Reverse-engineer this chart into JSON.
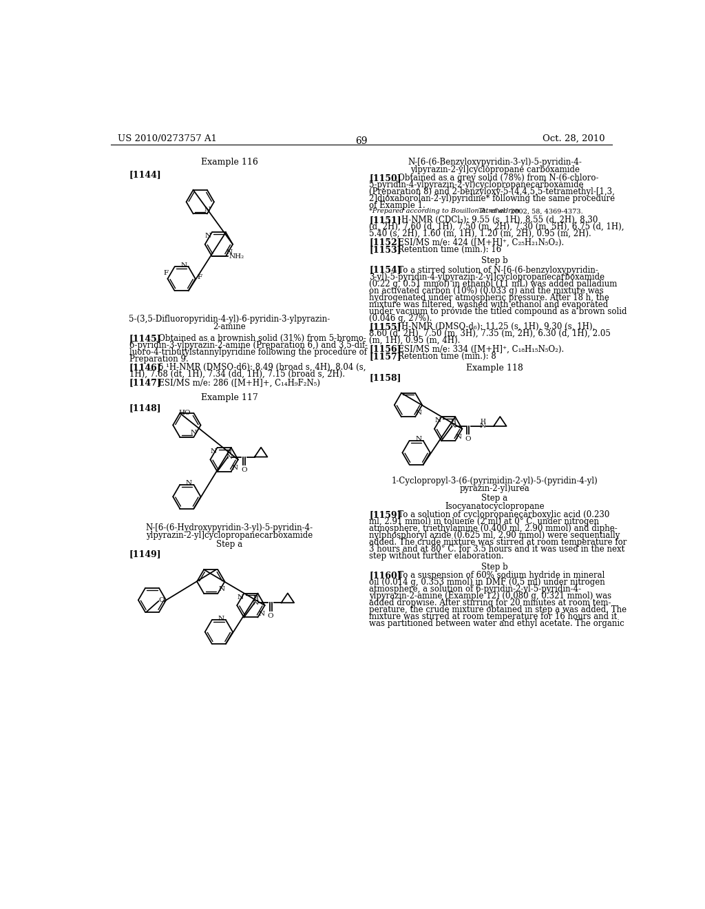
{
  "background_color": "#ffffff",
  "page_number": "69",
  "header_left": "US 2010/0273757 A1",
  "header_right": "Oct. 28, 2010"
}
